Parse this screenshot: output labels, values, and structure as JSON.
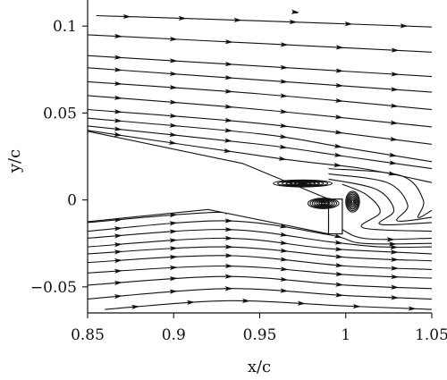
{
  "chart_data": {
    "type": "streamline",
    "xlabel": "x/c",
    "ylabel": "y/c",
    "xlim": [
      0.85,
      1.05
    ],
    "ylim": [
      -0.065,
      0.115
    ],
    "xticks": [
      {
        "value": 0.85,
        "label": "0.85"
      },
      {
        "value": 0.9,
        "label": "0.9"
      },
      {
        "value": 0.95,
        "label": "0.95"
      },
      {
        "value": 1.0,
        "label": "1"
      },
      {
        "value": 1.05,
        "label": "1.05"
      }
    ],
    "yticks": [
      {
        "value": -0.05,
        "label": "−0.05"
      },
      {
        "value": 0.0,
        "label": "0"
      },
      {
        "value": 0.05,
        "label": "0.05"
      },
      {
        "value": 0.1,
        "label": "0.1"
      }
    ],
    "airfoil": {
      "upper_edge": [
        [
          0.85,
          0.0395
        ],
        [
          0.94,
          0.021
        ],
        [
          0.99,
          0.0005
        ]
      ],
      "lower_edge": [
        [
          0.85,
          -0.0125
        ],
        [
          0.92,
          -0.0055
        ],
        [
          0.99,
          -0.0195
        ]
      ],
      "gurney_flap": {
        "x": [
          0.99,
          0.998
        ],
        "y": [
          -0.0195,
          0.0005
        ]
      }
    },
    "streamlines_upper": [
      [
        [
          0.855,
          0.106
        ],
        [
          0.95,
          0.103
        ],
        [
          1.05,
          0.0995
        ]
      ],
      [
        [
          0.85,
          0.095
        ],
        [
          0.95,
          0.09
        ],
        [
          1.05,
          0.085
        ]
      ],
      [
        [
          0.85,
          0.083
        ],
        [
          0.95,
          0.077
        ],
        [
          1.05,
          0.071
        ]
      ],
      [
        [
          0.85,
          0.076
        ],
        [
          0.95,
          0.069
        ],
        [
          1.05,
          0.062
        ]
      ],
      [
        [
          0.85,
          0.068
        ],
        [
          0.95,
          0.061
        ],
        [
          1.05,
          0.052
        ]
      ],
      [
        [
          0.85,
          0.06
        ],
        [
          0.95,
          0.052
        ],
        [
          1.05,
          0.042
        ]
      ],
      [
        [
          0.85,
          0.052
        ],
        [
          0.95,
          0.044
        ],
        [
          1.05,
          0.032
        ]
      ],
      [
        [
          0.85,
          0.047
        ],
        [
          0.95,
          0.038
        ],
        [
          1.0,
          0.03
        ],
        [
          1.05,
          0.022
        ]
      ],
      [
        [
          0.85,
          0.0425
        ],
        [
          0.95,
          0.032
        ],
        [
          1.0,
          0.025
        ],
        [
          1.05,
          0.018
        ]
      ],
      [
        [
          0.85,
          0.04
        ],
        [
          0.96,
          0.024
        ],
        [
          1.01,
          0.018
        ],
        [
          1.05,
          0.01
        ]
      ]
    ],
    "streamlines_lower": [
      [
        [
          0.85,
          -0.013
        ],
        [
          0.93,
          -0.007
        ],
        [
          0.985,
          -0.012
        ],
        [
          1.01,
          -0.022
        ],
        [
          1.05,
          -0.022
        ]
      ],
      [
        [
          0.85,
          -0.018
        ],
        [
          0.93,
          -0.012
        ],
        [
          0.99,
          -0.02
        ],
        [
          1.01,
          -0.025
        ],
        [
          1.05,
          -0.025
        ]
      ],
      [
        [
          0.85,
          -0.022
        ],
        [
          0.93,
          -0.017
        ],
        [
          0.99,
          -0.024
        ],
        [
          1.02,
          -0.027
        ],
        [
          1.05,
          -0.027
        ]
      ],
      [
        [
          0.85,
          -0.027
        ],
        [
          0.93,
          -0.022
        ],
        [
          0.99,
          -0.028
        ],
        [
          1.05,
          -0.031
        ]
      ],
      [
        [
          0.85,
          -0.031
        ],
        [
          0.93,
          -0.027
        ],
        [
          1.0,
          -0.033
        ],
        [
          1.05,
          -0.035
        ]
      ],
      [
        [
          0.85,
          -0.036
        ],
        [
          0.93,
          -0.032
        ],
        [
          1.0,
          -0.038
        ],
        [
          1.05,
          -0.04
        ]
      ],
      [
        [
          0.85,
          -0.042
        ],
        [
          0.93,
          -0.038
        ],
        [
          1.0,
          -0.043
        ],
        [
          1.05,
          -0.045
        ]
      ],
      [
        [
          0.85,
          -0.049
        ],
        [
          0.93,
          -0.044
        ],
        [
          1.0,
          -0.049
        ],
        [
          1.05,
          -0.051
        ]
      ],
      [
        [
          0.85,
          -0.057
        ],
        [
          0.93,
          -0.051
        ],
        [
          1.0,
          -0.055
        ],
        [
          1.05,
          -0.057
        ]
      ],
      [
        [
          0.86,
          -0.063
        ],
        [
          0.93,
          -0.058
        ],
        [
          1.0,
          -0.061
        ],
        [
          1.05,
          -0.063
        ]
      ]
    ],
    "wake_loops": [
      [
        [
          0.998,
          0.009
        ],
        [
          1.012,
          0.003
        ],
        [
          1.02,
          -0.007
        ],
        [
          1.01,
          -0.016
        ],
        [
          1.05,
          -0.018
        ]
      ],
      [
        [
          0.99,
          0.012
        ],
        [
          1.018,
          0.006
        ],
        [
          1.028,
          -0.006
        ],
        [
          1.02,
          -0.014
        ],
        [
          1.05,
          -0.013
        ]
      ],
      [
        [
          0.99,
          0.015
        ],
        [
          1.024,
          0.01
        ],
        [
          1.036,
          -0.003
        ],
        [
          1.03,
          -0.012
        ],
        [
          1.05,
          -0.01
        ]
      ],
      [
        [
          0.99,
          0.018
        ],
        [
          1.032,
          0.014
        ],
        [
          1.045,
          0.0
        ],
        [
          1.042,
          -0.01
        ],
        [
          1.05,
          -0.006
        ]
      ]
    ],
    "vortices": [
      {
        "center": [
          0.987,
          -0.002
        ],
        "rx": 0.009,
        "ry": 0.003
      },
      {
        "center": [
          1.004,
          -0.001
        ],
        "rx": 0.004,
        "ry": 0.006
      },
      {
        "center": [
          0.975,
          0.0095
        ],
        "rx": 0.017,
        "ry": 0.002
      }
    ]
  }
}
